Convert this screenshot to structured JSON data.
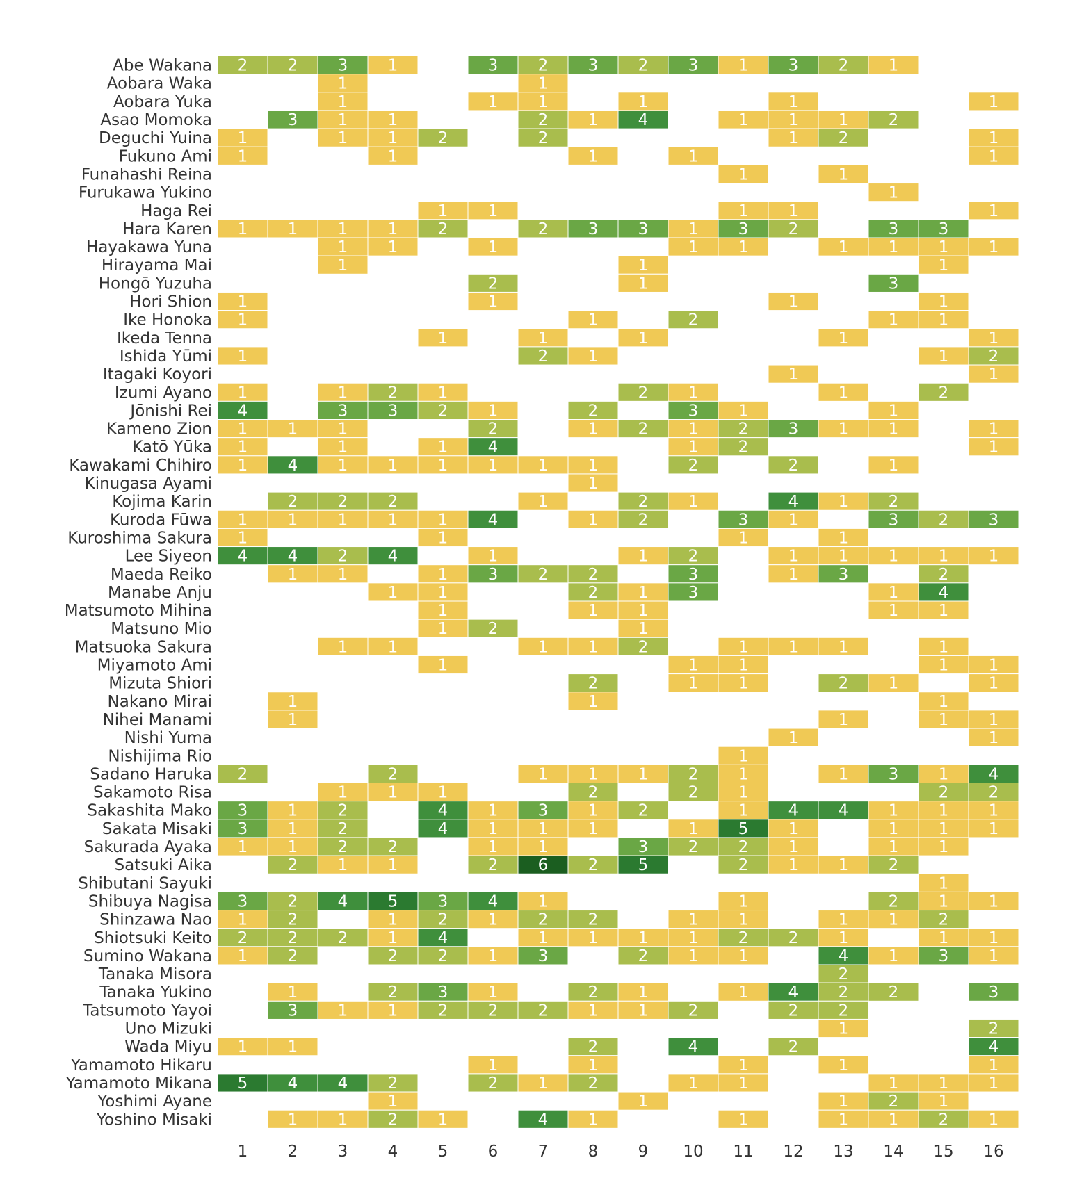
{
  "chart_data": {
    "type": "heatmap",
    "title": "",
    "xlabel": "",
    "ylabel": "",
    "columns": [
      "1",
      "2",
      "3",
      "4",
      "5",
      "6",
      "7",
      "8",
      "9",
      "10",
      "11",
      "12",
      "13",
      "14",
      "15",
      "16"
    ],
    "rows": [
      {
        "name": "Abe Wakana",
        "values": [
          2,
          2,
          3,
          1,
          0,
          3,
          2,
          3,
          2,
          3,
          1,
          3,
          2,
          1,
          0,
          0
        ]
      },
      {
        "name": "Aobara Waka",
        "values": [
          0,
          0,
          1,
          0,
          0,
          0,
          1,
          0,
          0,
          0,
          0,
          0,
          0,
          0,
          0,
          0
        ]
      },
      {
        "name": "Aobara Yuka",
        "values": [
          0,
          0,
          1,
          0,
          0,
          1,
          1,
          0,
          1,
          0,
          0,
          1,
          0,
          0,
          0,
          1
        ]
      },
      {
        "name": "Asao Momoka",
        "values": [
          0,
          3,
          1,
          1,
          0,
          0,
          2,
          1,
          4,
          0,
          1,
          1,
          1,
          2,
          0,
          0
        ]
      },
      {
        "name": "Deguchi Yuina",
        "values": [
          1,
          0,
          1,
          1,
          2,
          0,
          2,
          0,
          0,
          0,
          0,
          1,
          2,
          0,
          0,
          1
        ]
      },
      {
        "name": "Fukuno Ami",
        "values": [
          1,
          0,
          0,
          1,
          0,
          0,
          0,
          1,
          0,
          1,
          0,
          0,
          0,
          0,
          0,
          1
        ]
      },
      {
        "name": "Funahashi Reina",
        "values": [
          0,
          0,
          0,
          0,
          0,
          0,
          0,
          0,
          0,
          0,
          1,
          0,
          1,
          0,
          0,
          0
        ]
      },
      {
        "name": "Furukawa Yukino",
        "values": [
          0,
          0,
          0,
          0,
          0,
          0,
          0,
          0,
          0,
          0,
          0,
          0,
          0,
          1,
          0,
          0
        ]
      },
      {
        "name": "Haga Rei",
        "values": [
          0,
          0,
          0,
          0,
          1,
          1,
          0,
          0,
          0,
          0,
          1,
          1,
          0,
          0,
          0,
          1
        ]
      },
      {
        "name": "Hara Karen",
        "values": [
          1,
          1,
          1,
          1,
          2,
          0,
          2,
          3,
          3,
          1,
          3,
          2,
          0,
          3,
          3,
          0
        ]
      },
      {
        "name": "Hayakawa Yuna",
        "values": [
          0,
          0,
          1,
          1,
          0,
          1,
          0,
          0,
          0,
          1,
          1,
          0,
          1,
          1,
          1,
          1
        ]
      },
      {
        "name": "Hirayama Mai",
        "values": [
          0,
          0,
          1,
          0,
          0,
          0,
          0,
          0,
          1,
          0,
          0,
          0,
          0,
          0,
          1,
          0
        ]
      },
      {
        "name": "Hongō Yuzuha",
        "values": [
          0,
          0,
          0,
          0,
          0,
          2,
          0,
          0,
          1,
          0,
          0,
          0,
          0,
          3,
          0,
          0
        ]
      },
      {
        "name": "Hori Shion",
        "values": [
          1,
          0,
          0,
          0,
          0,
          1,
          0,
          0,
          0,
          0,
          0,
          1,
          0,
          0,
          1,
          0
        ]
      },
      {
        "name": "Ike Honoka",
        "values": [
          1,
          0,
          0,
          0,
          0,
          0,
          0,
          1,
          0,
          2,
          0,
          0,
          0,
          1,
          1,
          0
        ]
      },
      {
        "name": "Ikeda Tenna",
        "values": [
          0,
          0,
          0,
          0,
          1,
          0,
          1,
          0,
          1,
          0,
          0,
          0,
          1,
          0,
          0,
          1
        ]
      },
      {
        "name": "Ishida Yūmi",
        "values": [
          1,
          0,
          0,
          0,
          0,
          0,
          2,
          1,
          0,
          0,
          0,
          0,
          0,
          0,
          1,
          2
        ]
      },
      {
        "name": "Itagaki Koyori",
        "values": [
          0,
          0,
          0,
          0,
          0,
          0,
          0,
          0,
          0,
          0,
          0,
          1,
          0,
          0,
          0,
          1
        ]
      },
      {
        "name": "Izumi Ayano",
        "values": [
          1,
          0,
          1,
          2,
          1,
          0,
          0,
          0,
          2,
          1,
          0,
          0,
          1,
          0,
          2,
          0
        ]
      },
      {
        "name": "Jōnishi Rei",
        "values": [
          4,
          0,
          3,
          3,
          2,
          1,
          0,
          2,
          0,
          3,
          1,
          0,
          0,
          1,
          0,
          0
        ]
      },
      {
        "name": "Kameno Zion",
        "values": [
          1,
          1,
          1,
          0,
          0,
          2,
          0,
          1,
          2,
          1,
          2,
          3,
          1,
          1,
          0,
          1
        ]
      },
      {
        "name": "Katō Yūka",
        "values": [
          1,
          0,
          1,
          0,
          1,
          4,
          0,
          0,
          0,
          1,
          2,
          0,
          0,
          0,
          0,
          1
        ]
      },
      {
        "name": "Kawakami Chihiro",
        "values": [
          1,
          4,
          1,
          1,
          1,
          1,
          1,
          1,
          0,
          2,
          0,
          2,
          0,
          1,
          0,
          0
        ]
      },
      {
        "name": "Kinugasa Ayami",
        "values": [
          0,
          0,
          0,
          0,
          0,
          0,
          0,
          1,
          0,
          0,
          0,
          0,
          0,
          0,
          0,
          0
        ]
      },
      {
        "name": "Kojima Karin",
        "values": [
          0,
          2,
          2,
          2,
          0,
          0,
          1,
          0,
          2,
          1,
          0,
          4,
          1,
          2,
          0,
          0
        ]
      },
      {
        "name": "Kuroda Fūwa",
        "values": [
          1,
          1,
          1,
          1,
          1,
          4,
          0,
          1,
          2,
          0,
          3,
          1,
          0,
          3,
          2,
          3
        ]
      },
      {
        "name": "Kuroshima Sakura",
        "values": [
          1,
          0,
          0,
          0,
          1,
          0,
          0,
          0,
          0,
          0,
          1,
          0,
          1,
          0,
          0,
          0
        ]
      },
      {
        "name": "Lee Siyeon",
        "values": [
          4,
          4,
          2,
          4,
          0,
          1,
          0,
          0,
          1,
          2,
          0,
          1,
          1,
          1,
          1,
          1
        ]
      },
      {
        "name": "Maeda Reiko",
        "values": [
          0,
          1,
          1,
          0,
          1,
          3,
          2,
          2,
          0,
          3,
          0,
          1,
          3,
          0,
          2,
          0
        ]
      },
      {
        "name": "Manabe Anju",
        "values": [
          0,
          0,
          0,
          1,
          1,
          0,
          0,
          2,
          1,
          3,
          0,
          0,
          0,
          1,
          4,
          0
        ]
      },
      {
        "name": "Matsumoto Mihina",
        "values": [
          0,
          0,
          0,
          0,
          1,
          0,
          0,
          1,
          1,
          0,
          0,
          0,
          0,
          1,
          1,
          0
        ]
      },
      {
        "name": "Matsuno Mio",
        "values": [
          0,
          0,
          0,
          0,
          1,
          2,
          0,
          0,
          1,
          0,
          0,
          0,
          0,
          0,
          0,
          0
        ]
      },
      {
        "name": "Matsuoka Sakura",
        "values": [
          0,
          0,
          1,
          1,
          0,
          0,
          1,
          1,
          2,
          0,
          1,
          1,
          1,
          0,
          1,
          0
        ]
      },
      {
        "name": "Miyamoto Ami",
        "values": [
          0,
          0,
          0,
          0,
          1,
          0,
          0,
          0,
          0,
          1,
          1,
          0,
          0,
          0,
          1,
          1
        ]
      },
      {
        "name": "Mizuta Shiori",
        "values": [
          0,
          0,
          0,
          0,
          0,
          0,
          0,
          2,
          0,
          1,
          1,
          0,
          2,
          1,
          0,
          1
        ]
      },
      {
        "name": "Nakano Mirai",
        "values": [
          0,
          1,
          0,
          0,
          0,
          0,
          0,
          1,
          0,
          0,
          0,
          0,
          0,
          0,
          1,
          0
        ]
      },
      {
        "name": "Nihei Manami",
        "values": [
          0,
          1,
          0,
          0,
          0,
          0,
          0,
          0,
          0,
          0,
          0,
          0,
          1,
          0,
          1,
          1
        ]
      },
      {
        "name": "Nishi Yuma",
        "values": [
          0,
          0,
          0,
          0,
          0,
          0,
          0,
          0,
          0,
          0,
          0,
          1,
          0,
          0,
          0,
          1
        ]
      },
      {
        "name": "Nishijima Rio",
        "values": [
          0,
          0,
          0,
          0,
          0,
          0,
          0,
          0,
          0,
          0,
          1,
          0,
          0,
          0,
          0,
          0
        ]
      },
      {
        "name": "Sadano Haruka",
        "values": [
          2,
          0,
          0,
          2,
          0,
          0,
          1,
          1,
          1,
          2,
          1,
          0,
          1,
          3,
          1,
          4
        ]
      },
      {
        "name": "Sakamoto Risa",
        "values": [
          0,
          0,
          1,
          1,
          1,
          0,
          0,
          2,
          0,
          2,
          1,
          0,
          0,
          0,
          2,
          2
        ]
      },
      {
        "name": "Sakashita Mako",
        "values": [
          3,
          1,
          2,
          0,
          4,
          1,
          3,
          1,
          2,
          0,
          1,
          4,
          4,
          1,
          1,
          1
        ]
      },
      {
        "name": "Sakata Misaki",
        "values": [
          3,
          1,
          2,
          0,
          4,
          1,
          1,
          1,
          0,
          1,
          5,
          1,
          0,
          1,
          1,
          1
        ]
      },
      {
        "name": "Sakurada Ayaka",
        "values": [
          1,
          1,
          2,
          2,
          0,
          1,
          1,
          0,
          3,
          2,
          2,
          1,
          0,
          1,
          1,
          0
        ]
      },
      {
        "name": "Satsuki Aika",
        "values": [
          0,
          2,
          1,
          1,
          0,
          2,
          6,
          2,
          5,
          0,
          2,
          1,
          1,
          2,
          0,
          0
        ]
      },
      {
        "name": "Shibutani Sayuki",
        "values": [
          0,
          0,
          0,
          0,
          0,
          0,
          0,
          0,
          0,
          0,
          0,
          0,
          0,
          0,
          1,
          0
        ]
      },
      {
        "name": "Shibuya Nagisa",
        "values": [
          3,
          2,
          4,
          5,
          3,
          4,
          1,
          0,
          0,
          0,
          1,
          0,
          0,
          2,
          1,
          1
        ]
      },
      {
        "name": "Shinzawa Nao",
        "values": [
          1,
          2,
          0,
          1,
          2,
          1,
          2,
          2,
          0,
          1,
          1,
          0,
          1,
          1,
          2,
          0
        ]
      },
      {
        "name": "Shiotsuki Keito",
        "values": [
          2,
          2,
          2,
          1,
          4,
          0,
          1,
          1,
          1,
          1,
          2,
          2,
          1,
          0,
          1,
          1
        ]
      },
      {
        "name": "Sumino Wakana",
        "values": [
          1,
          2,
          0,
          2,
          2,
          1,
          3,
          0,
          2,
          1,
          1,
          0,
          4,
          1,
          3,
          1
        ]
      },
      {
        "name": "Tanaka Misora",
        "values": [
          0,
          0,
          0,
          0,
          0,
          0,
          0,
          0,
          0,
          0,
          0,
          0,
          2,
          0,
          0,
          0
        ]
      },
      {
        "name": "Tanaka Yukino",
        "values": [
          0,
          1,
          0,
          2,
          3,
          1,
          0,
          2,
          1,
          0,
          1,
          4,
          2,
          2,
          0,
          3
        ]
      },
      {
        "name": "Tatsumoto Yayoi",
        "values": [
          0,
          3,
          1,
          1,
          2,
          2,
          2,
          1,
          1,
          2,
          0,
          2,
          2,
          0,
          0,
          0
        ]
      },
      {
        "name": "Uno Mizuki",
        "values": [
          0,
          0,
          0,
          0,
          0,
          0,
          0,
          0,
          0,
          0,
          0,
          0,
          1,
          0,
          0,
          2
        ]
      },
      {
        "name": "Wada Miyu",
        "values": [
          1,
          1,
          0,
          0,
          0,
          0,
          0,
          2,
          0,
          4,
          0,
          2,
          0,
          0,
          0,
          4
        ]
      },
      {
        "name": "Yamamoto Hikaru",
        "values": [
          0,
          0,
          0,
          0,
          0,
          1,
          0,
          1,
          0,
          0,
          1,
          0,
          1,
          0,
          0,
          1
        ]
      },
      {
        "name": "Yamamoto Mikana",
        "values": [
          5,
          4,
          4,
          2,
          0,
          2,
          1,
          2,
          0,
          1,
          1,
          0,
          0,
          1,
          1,
          1
        ]
      },
      {
        "name": "Yoshimi Ayane",
        "values": [
          0,
          0,
          0,
          1,
          0,
          0,
          0,
          0,
          1,
          0,
          0,
          0,
          1,
          2,
          1,
          0
        ]
      },
      {
        "name": "Yoshino Misaki",
        "values": [
          0,
          1,
          1,
          2,
          1,
          0,
          4,
          1,
          0,
          0,
          1,
          0,
          1,
          1,
          2,
          1
        ]
      }
    ],
    "color_scale": {
      "1": "#f0c955",
      "2": "#a9bd4d",
      "3": "#6aa745",
      "4": "#3f8f3c",
      "5": "#2b7a30",
      "6": "#1b5e20"
    },
    "grid": false,
    "legend": "none"
  }
}
